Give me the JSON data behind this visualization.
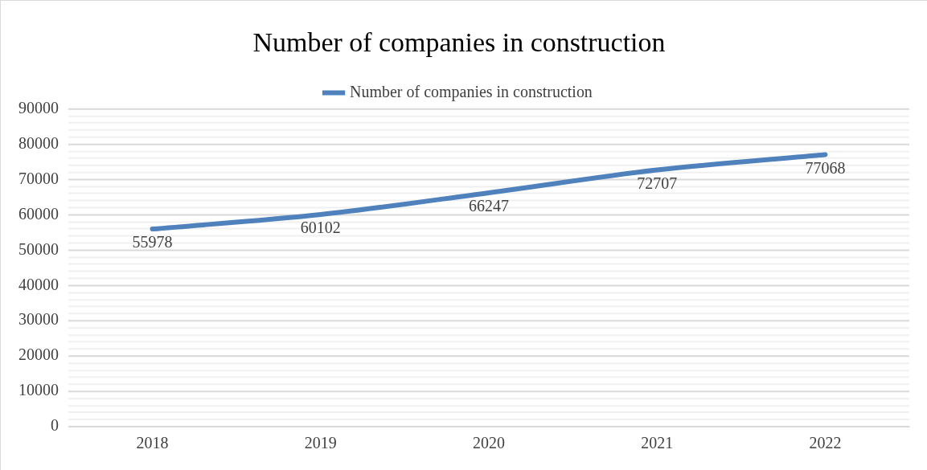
{
  "chart_data": {
    "type": "line",
    "title": "Number of companies in construction",
    "categories": [
      "2018",
      "2019",
      "2020",
      "2021",
      "2022"
    ],
    "series": [
      {
        "name": "Number of companies in construction",
        "color": "#4f81bd",
        "values": [
          55978,
          60102,
          66247,
          72707,
          77068
        ]
      }
    ],
    "ylim": [
      0,
      90000
    ],
    "yticks": [
      0,
      {
        "value": 2000,
        "label": null
      },
      {
        "value": 4000,
        "label": null
      },
      {
        "value": 6000,
        "label": null
      },
      {
        "value": 8000,
        "label": null
      },
      10000,
      {
        "value": 12000,
        "label": null
      },
      {
        "value": 14000,
        "label": null
      },
      {
        "value": 16000,
        "label": null
      },
      {
        "value": 18000,
        "label": null
      },
      20000,
      {
        "value": 22000,
        "label": null
      },
      {
        "value": 24000,
        "label": null
      },
      {
        "value": 26000,
        "label": null
      },
      {
        "value": 28000,
        "label": null
      },
      30000,
      {
        "value": 32000,
        "label": null
      },
      {
        "value": 34000,
        "label": null
      },
      {
        "value": 36000,
        "label": null
      },
      {
        "value": 38000,
        "label": null
      },
      40000,
      {
        "value": 42000,
        "label": null
      },
      {
        "value": 44000,
        "label": null
      },
      {
        "value": 46000,
        "label": null
      },
      {
        "value": 48000,
        "label": null
      },
      50000,
      {
        "value": 52000,
        "label": null
      },
      {
        "value": 54000,
        "label": null
      },
      {
        "value": 56000,
        "label": null
      },
      {
        "value": 58000,
        "label": null
      },
      60000,
      {
        "value": 62000,
        "label": null
      },
      {
        "value": 64000,
        "label": null
      },
      {
        "value": 66000,
        "label": null
      },
      {
        "value": 68000,
        "label": null
      },
      70000,
      {
        "value": 72000,
        "label": null
      },
      {
        "value": 74000,
        "label": null
      },
      {
        "value": 76000,
        "label": null
      },
      {
        "value": 78000,
        "label": null
      },
      80000,
      {
        "value": 82000,
        "label": null
      },
      {
        "value": 84000,
        "label": null
      },
      {
        "value": 86000,
        "label": null
      },
      {
        "value": 88000,
        "label": null
      },
      90000
    ],
    "grid": "y",
    "legend": "top",
    "marker": "none",
    "line_style": "solid",
    "data_labels": true
  }
}
